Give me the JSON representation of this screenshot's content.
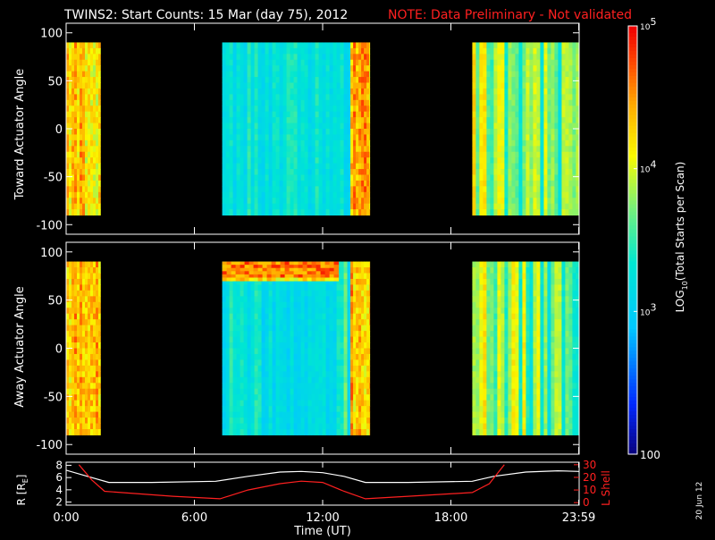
{
  "header": {
    "title": "TWINS2: Start Counts: 15 Mar (day  75), 2012",
    "note": "NOTE: Data Preliminary - Not validated",
    "note_color": "#ff2020"
  },
  "stamp": "20 Jun 12",
  "colors": {
    "background": "#000000",
    "axes": "#ffffff",
    "r_line": "#ffffff",
    "lshell_line": "#ff2020"
  },
  "chart_data": [
    {
      "type": "heatmap",
      "name": "toward",
      "ylabel": "Toward Actuator Angle",
      "xlim": [
        0,
        24
      ],
      "ylim": [
        -110,
        110
      ],
      "yticks": [
        100,
        50,
        0,
        -50,
        -100
      ],
      "data_angle_range": [
        -90,
        90
      ],
      "segments": [
        {
          "start_h": 0.0,
          "end_h": 1.6,
          "level": 4.3,
          "style": "hot"
        },
        {
          "start_h": 7.3,
          "end_h": 13.3,
          "level": 3.3,
          "style": "cool"
        },
        {
          "start_h": 13.3,
          "end_h": 14.2,
          "level": 4.4,
          "style": "hot"
        },
        {
          "start_h": 19.0,
          "end_h": 24.0,
          "level": 3.6,
          "style": "mixed"
        }
      ]
    },
    {
      "type": "heatmap",
      "name": "away",
      "ylabel": "Away Actuator Angle",
      "xlim": [
        0,
        24
      ],
      "ylim": [
        -110,
        110
      ],
      "yticks": [
        100,
        50,
        0,
        -50,
        -100
      ],
      "data_angle_range": [
        -90,
        90
      ],
      "segments": [
        {
          "start_h": 0.0,
          "end_h": 1.6,
          "level": 4.3,
          "style": "hot"
        },
        {
          "start_h": 7.3,
          "end_h": 13.3,
          "level": 3.2,
          "style": "cool"
        },
        {
          "start_h": 13.3,
          "end_h": 14.2,
          "level": 4.4,
          "style": "hot"
        },
        {
          "start_h": 19.0,
          "end_h": 24.0,
          "level": 3.6,
          "style": "mixed"
        }
      ],
      "hot_band": {
        "start_h": 7.3,
        "end_h": 12.6,
        "angle_min": 70,
        "angle_max": 90,
        "level": 4.6
      }
    },
    {
      "type": "line",
      "name": "ephemeris",
      "xlabel": "Time (UT)",
      "xticks": [
        "0:00",
        "6:00",
        "12:00",
        "18:00",
        "23:59"
      ],
      "xtick_hours": [
        0,
        6,
        12,
        18,
        23.98
      ],
      "left_axis": {
        "label": "R [RE]",
        "label_base": "R [R",
        "label_sub": "E",
        "label_end": "]",
        "ticks": [
          8,
          6,
          4,
          2
        ],
        "ylim": [
          1.5,
          8.5
        ]
      },
      "right_axis": {
        "label": "L Shell",
        "ticks": [
          30,
          20,
          10,
          0
        ],
        "ylim": [
          -2,
          32
        ]
      },
      "series": [
        {
          "axis": "left",
          "x": [
            0,
            1,
            2,
            4,
            7,
            8.5,
            10,
            11,
            12,
            13,
            14,
            16,
            19,
            20,
            21.5,
            23,
            24
          ],
          "y": [
            7.2,
            6.2,
            5.2,
            5.2,
            5.4,
            6.2,
            6.9,
            7.0,
            6.8,
            6.2,
            5.2,
            5.2,
            5.4,
            6.2,
            6.9,
            7.1,
            7.0
          ]
        },
        {
          "axis": "right",
          "x": [
            0.6,
            1.2,
            1.8,
            3,
            5,
            7.2,
            8.5,
            10,
            11,
            12,
            13,
            14,
            16,
            19,
            19.8,
            20.5
          ],
          "y": [
            30,
            18,
            9,
            7.5,
            5,
            3,
            10,
            15,
            17,
            16,
            9,
            3,
            5,
            8,
            15,
            30
          ]
        }
      ]
    },
    {
      "type": "heatmap",
      "name": "colorbar",
      "label": "LOG10(Total Starts per Scan)",
      "label_base": "LOG",
      "label_sub": "10",
      "label_rest": "(Total Starts per Scan)",
      "range_log10": [
        2,
        5
      ],
      "tick_labels": [
        {
          "log": 5,
          "base": "10",
          "exp": "5"
        },
        {
          "log": 4,
          "base": "10",
          "exp": "4"
        },
        {
          "log": 3,
          "base": "10",
          "exp": "3"
        },
        {
          "log": 2,
          "base": "100",
          "exp": ""
        }
      ]
    }
  ]
}
